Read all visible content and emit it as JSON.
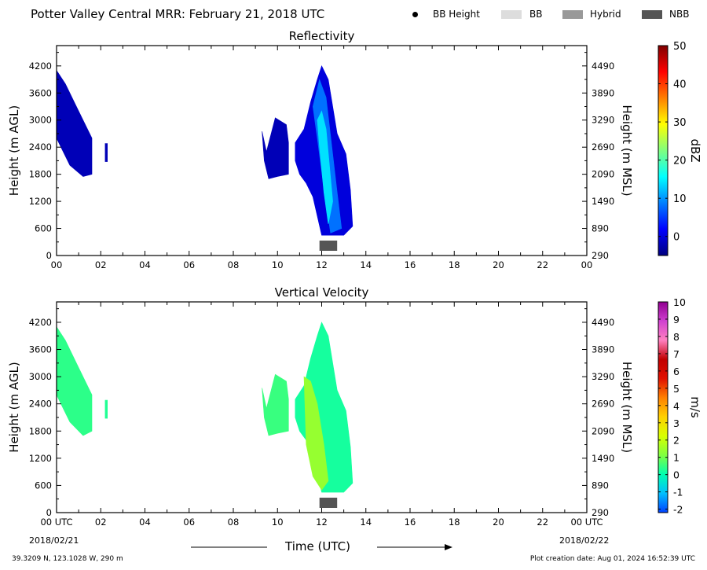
{
  "header": {
    "title": "Potter Valley Central MRR:  February 21, 2018 UTC",
    "legend": [
      {
        "label": "BB Height",
        "symbol": "dot",
        "color": "#000000"
      },
      {
        "label": "BB",
        "symbol": "rect",
        "color": "#dddddd"
      },
      {
        "label": "Hybrid",
        "symbol": "rect",
        "color": "#999999"
      },
      {
        "label": "NBB",
        "symbol": "rect",
        "color": "#555555"
      }
    ]
  },
  "footer": {
    "location": "39.3209 N, 123.1028 W, 290 m",
    "created": "Plot creation date: Aug 01, 2024 16:52:39 UTC",
    "start_date": "2018/02/21",
    "end_date": "2018/02/22",
    "time_label": "Time (UTC)"
  },
  "chart_data": [
    {
      "type": "heatmap",
      "title": "Reflectivity",
      "xlabel": "Time (UTC)",
      "ylabel": "Height (m AGL)",
      "ylabel_right": "Height (m MSL)",
      "xlim": [
        0,
        24
      ],
      "ylim": [
        0,
        4650
      ],
      "x_ticks": [
        "00",
        "02",
        "04",
        "06",
        "08",
        "10",
        "12",
        "14",
        "16",
        "18",
        "20",
        "22",
        "00"
      ],
      "y_ticks": [
        0,
        600,
        1200,
        1800,
        2400,
        3000,
        3600,
        4200
      ],
      "y_ticks_right": [
        290,
        890,
        1490,
        2090,
        2690,
        3290,
        3890,
        4490
      ],
      "colorbar": {
        "label": "dBZ",
        "ticks": [
          0,
          10,
          20,
          30,
          40,
          50
        ],
        "range": [
          -5,
          50
        ],
        "stops": [
          "#00007f",
          "#0000ff",
          "#007fff",
          "#00ffff",
          "#7fff7f",
          "#ffff00",
          "#ff7f00",
          "#ff0000",
          "#7f0000"
        ]
      },
      "bright_band": [
        {
          "start_hr": 11.9,
          "end_hr": 12.7,
          "type": "NBB"
        }
      ],
      "echo_regions": [
        {
          "x": [
            0.0,
            0.4,
            1.0,
            1.6,
            1.6,
            1.2,
            0.6,
            0.2,
            0.0
          ],
          "y": [
            4100,
            3800,
            3200,
            2600,
            1800,
            1750,
            2000,
            2400,
            2600
          ],
          "value": -2
        },
        {
          "x": [
            2.2,
            2.3,
            2.3,
            2.2
          ],
          "y": [
            2480,
            2480,
            2080,
            2080
          ],
          "value": -2
        },
        {
          "x": [
            9.3,
            9.5,
            9.9,
            10.4,
            10.5,
            10.5,
            10.0,
            9.6,
            9.4
          ],
          "y": [
            2750,
            2300,
            3050,
            2900,
            2500,
            1800,
            1750,
            1700,
            2100
          ],
          "value": -2
        },
        {
          "x": [
            10.8,
            11.2,
            11.5,
            11.8,
            12.0,
            12.3,
            12.7,
            13.1,
            13.3,
            13.4,
            13.0,
            12.4,
            12.0,
            11.6,
            11.3,
            11.0,
            10.8
          ],
          "y": [
            2500,
            2800,
            3400,
            3900,
            4200,
            3900,
            2700,
            2250,
            1450,
            650,
            450,
            450,
            450,
            1300,
            1600,
            1800,
            2100
          ],
          "value": 0
        },
        {
          "x": [
            11.6,
            11.9,
            12.2,
            12.7,
            12.9,
            12.4,
            12.1,
            11.8
          ],
          "y": [
            3300,
            3900,
            3500,
            1400,
            600,
            500,
            1500,
            2600
          ],
          "value": 8
        },
        {
          "x": [
            11.8,
            12.0,
            12.2,
            12.5,
            12.3,
            12.1,
            11.9
          ],
          "y": [
            3000,
            3200,
            2800,
            1200,
            700,
            1400,
            2400
          ],
          "value": 14
        }
      ]
    },
    {
      "type": "heatmap",
      "title": "Vertical Velocity",
      "xlabel": "Time (UTC)",
      "ylabel": "Height (m AGL)",
      "ylabel_right": "Height (m MSL)",
      "xlim": [
        0,
        24
      ],
      "ylim": [
        0,
        4650
      ],
      "x_ticks": [
        "00 UTC",
        "02",
        "04",
        "06",
        "08",
        "10",
        "12",
        "14",
        "16",
        "18",
        "20",
        "22",
        "00 UTC"
      ],
      "y_ticks": [
        0,
        600,
        1200,
        1800,
        2400,
        3000,
        3600,
        4200
      ],
      "y_ticks_right": [
        290,
        890,
        1490,
        2090,
        2690,
        3290,
        3890,
        4490
      ],
      "colorbar": {
        "label": "m/s",
        "ticks": [
          -2,
          -1,
          0,
          1,
          2,
          3,
          4,
          5,
          6,
          7,
          8,
          9,
          10
        ],
        "range": [
          -2.2,
          10
        ],
        "stops": [
          "#0040ff",
          "#00bfff",
          "#00ffb0",
          "#80ff40",
          "#d8ff00",
          "#ffd000",
          "#ff8000",
          "#e01000",
          "#c00000",
          "#ff80c0",
          "#d040d0",
          "#900090"
        ]
      },
      "bright_band": [
        {
          "start_hr": 11.9,
          "end_hr": 12.7,
          "type": "NBB"
        }
      ],
      "echo_regions": [
        {
          "x": [
            0.0,
            0.4,
            1.0,
            1.6,
            1.6,
            1.2,
            0.6,
            0.2,
            0.0
          ],
          "y": [
            4100,
            3800,
            3200,
            2600,
            1800,
            1700,
            2000,
            2400,
            2600
          ],
          "value": 0.4
        },
        {
          "x": [
            2.2,
            2.3,
            2.3,
            2.2
          ],
          "y": [
            2480,
            2480,
            2080,
            2080
          ],
          "value": 0.3
        },
        {
          "x": [
            9.3,
            9.5,
            9.9,
            10.4,
            10.5,
            10.5,
            10.0,
            9.6,
            9.4
          ],
          "y": [
            2750,
            2300,
            3050,
            2900,
            2500,
            1800,
            1750,
            1700,
            2100
          ],
          "value": 0.5
        },
        {
          "x": [
            10.8,
            11.2,
            11.5,
            11.8,
            12.0,
            12.3,
            12.7,
            13.1,
            13.3,
            13.4,
            13.0,
            12.4,
            12.0,
            11.6,
            11.3,
            11.0,
            10.8
          ],
          "y": [
            2500,
            2800,
            3400,
            3900,
            4200,
            3900,
            2700,
            2250,
            1450,
            650,
            450,
            450,
            450,
            1300,
            1600,
            1800,
            2100
          ],
          "value": 0.2
        },
        {
          "x": [
            11.2,
            11.5,
            11.8,
            12.1,
            12.3,
            12.0,
            11.6,
            11.3
          ],
          "y": [
            3000,
            2900,
            2400,
            1500,
            700,
            500,
            800,
            1500
          ],
          "value": 1.4
        }
      ]
    }
  ]
}
